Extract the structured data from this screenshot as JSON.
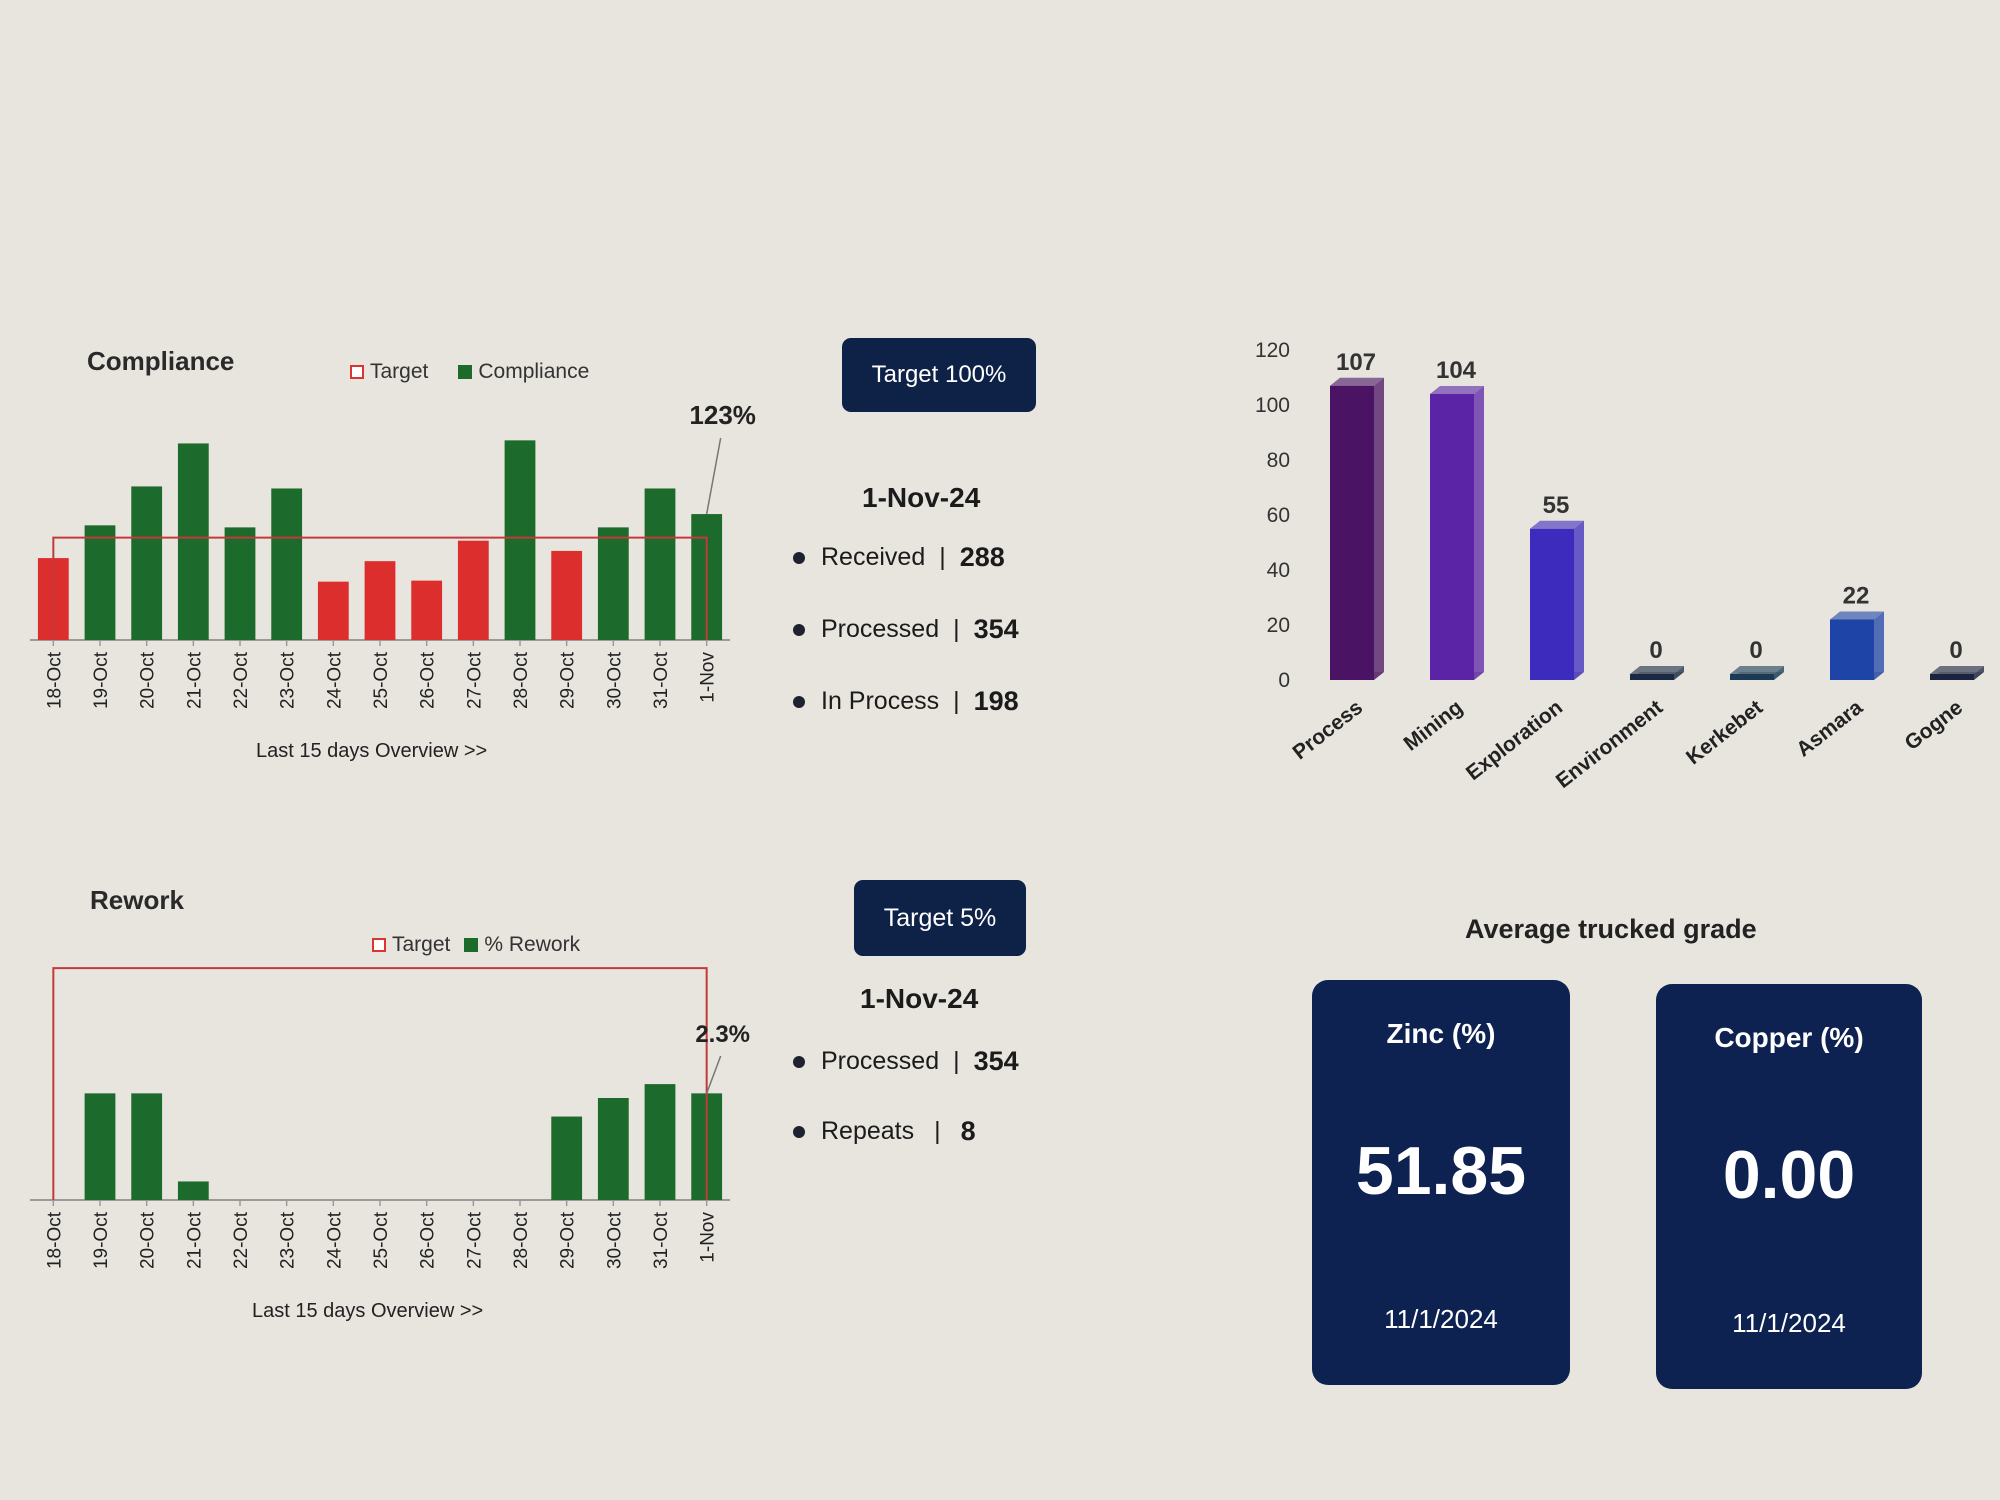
{
  "compliance": {
    "title": "Compliance",
    "legend": {
      "target": "Target",
      "series": "Compliance"
    },
    "target_button": "Target 100%",
    "callout": "123%",
    "overview": "Last 15 days Overview >>",
    "stats": {
      "date": "1-Nov-24",
      "rows": [
        {
          "label": "Received",
          "value": "288"
        },
        {
          "label": "Processed",
          "value": "354"
        },
        {
          "label": "In Process",
          "value": "198"
        }
      ]
    },
    "colors": {
      "below": "#dd2e2e",
      "above": "#1d6b2c",
      "target": "#c43a3a"
    }
  },
  "rework": {
    "title": "Rework",
    "legend": {
      "target": "Target",
      "series": "% Rework"
    },
    "target_button": "Target 5%",
    "callout": "2.3%",
    "overview": "Last 15 days Overview >>",
    "stats": {
      "date": "1-Nov-24",
      "rows": [
        {
          "label": "Processed",
          "value": "354"
        },
        {
          "label": "Repeats",
          "value": "8"
        }
      ]
    }
  },
  "cards_title": "Average trucked grade",
  "cards": [
    {
      "title": "Zinc (%)",
      "value": "51.85",
      "date": "11/1/2024"
    },
    {
      "title": "Copper (%)",
      "value": "0.00",
      "date": "11/1/2024"
    }
  ],
  "chart_data": [
    {
      "type": "bar",
      "title": "Compliance",
      "categories": [
        "18-Oct",
        "19-Oct",
        "20-Oct",
        "21-Oct",
        "22-Oct",
        "23-Oct",
        "24-Oct",
        "25-Oct",
        "26-Oct",
        "27-Oct",
        "28-Oct",
        "29-Oct",
        "30-Oct",
        "31-Oct",
        "1-Nov"
      ],
      "series": [
        {
          "name": "Compliance",
          "values": [
            80,
            112,
            150,
            192,
            110,
            148,
            57,
            77,
            58,
            97,
            195,
            87,
            110,
            148,
            123
          ]
        },
        {
          "name": "Target",
          "values": [
            100,
            100,
            100,
            100,
            100,
            100,
            100,
            100,
            100,
            100,
            100,
            100,
            100,
            100,
            100
          ]
        }
      ],
      "ylim": [
        0,
        210
      ],
      "grid": false,
      "legend": "top"
    },
    {
      "type": "bar",
      "title": "Rework",
      "categories": [
        "18-Oct",
        "19-Oct",
        "20-Oct",
        "21-Oct",
        "22-Oct",
        "23-Oct",
        "24-Oct",
        "25-Oct",
        "26-Oct",
        "27-Oct",
        "28-Oct",
        "29-Oct",
        "30-Oct",
        "31-Oct",
        "1-Nov"
      ],
      "series": [
        {
          "name": "% Rework",
          "values": [
            0,
            2.3,
            2.3,
            0.4,
            0,
            0,
            0,
            0,
            0,
            0,
            0,
            1.8,
            2.2,
            2.5,
            2.3
          ]
        },
        {
          "name": "Target",
          "values": [
            5,
            5,
            5,
            5,
            5,
            5,
            5,
            5,
            5,
            5,
            5,
            5,
            5,
            5,
            5
          ]
        }
      ],
      "ylim": [
        0,
        5.5
      ],
      "grid": false,
      "legend": "top"
    },
    {
      "type": "bar",
      "categories": [
        "Process",
        "Mining",
        "Exploration",
        "Environment",
        "Kerkebet",
        "Asmara",
        "Gogne"
      ],
      "values": [
        107,
        104,
        55,
        0,
        0,
        22,
        0
      ],
      "data_labels": [
        "107",
        "104",
        "55",
        "0",
        "0",
        "22",
        "0"
      ],
      "colors": [
        "#4a1363",
        "#5b24a6",
        "#3d2bbd",
        "#1a2a44",
        "#1a3a55",
        "#1f44a8",
        "#1a2340"
      ],
      "yticks": [
        "0",
        "20",
        "40",
        "60",
        "80",
        "100",
        "120"
      ],
      "ylim": [
        0,
        120
      ],
      "grid": false
    }
  ]
}
